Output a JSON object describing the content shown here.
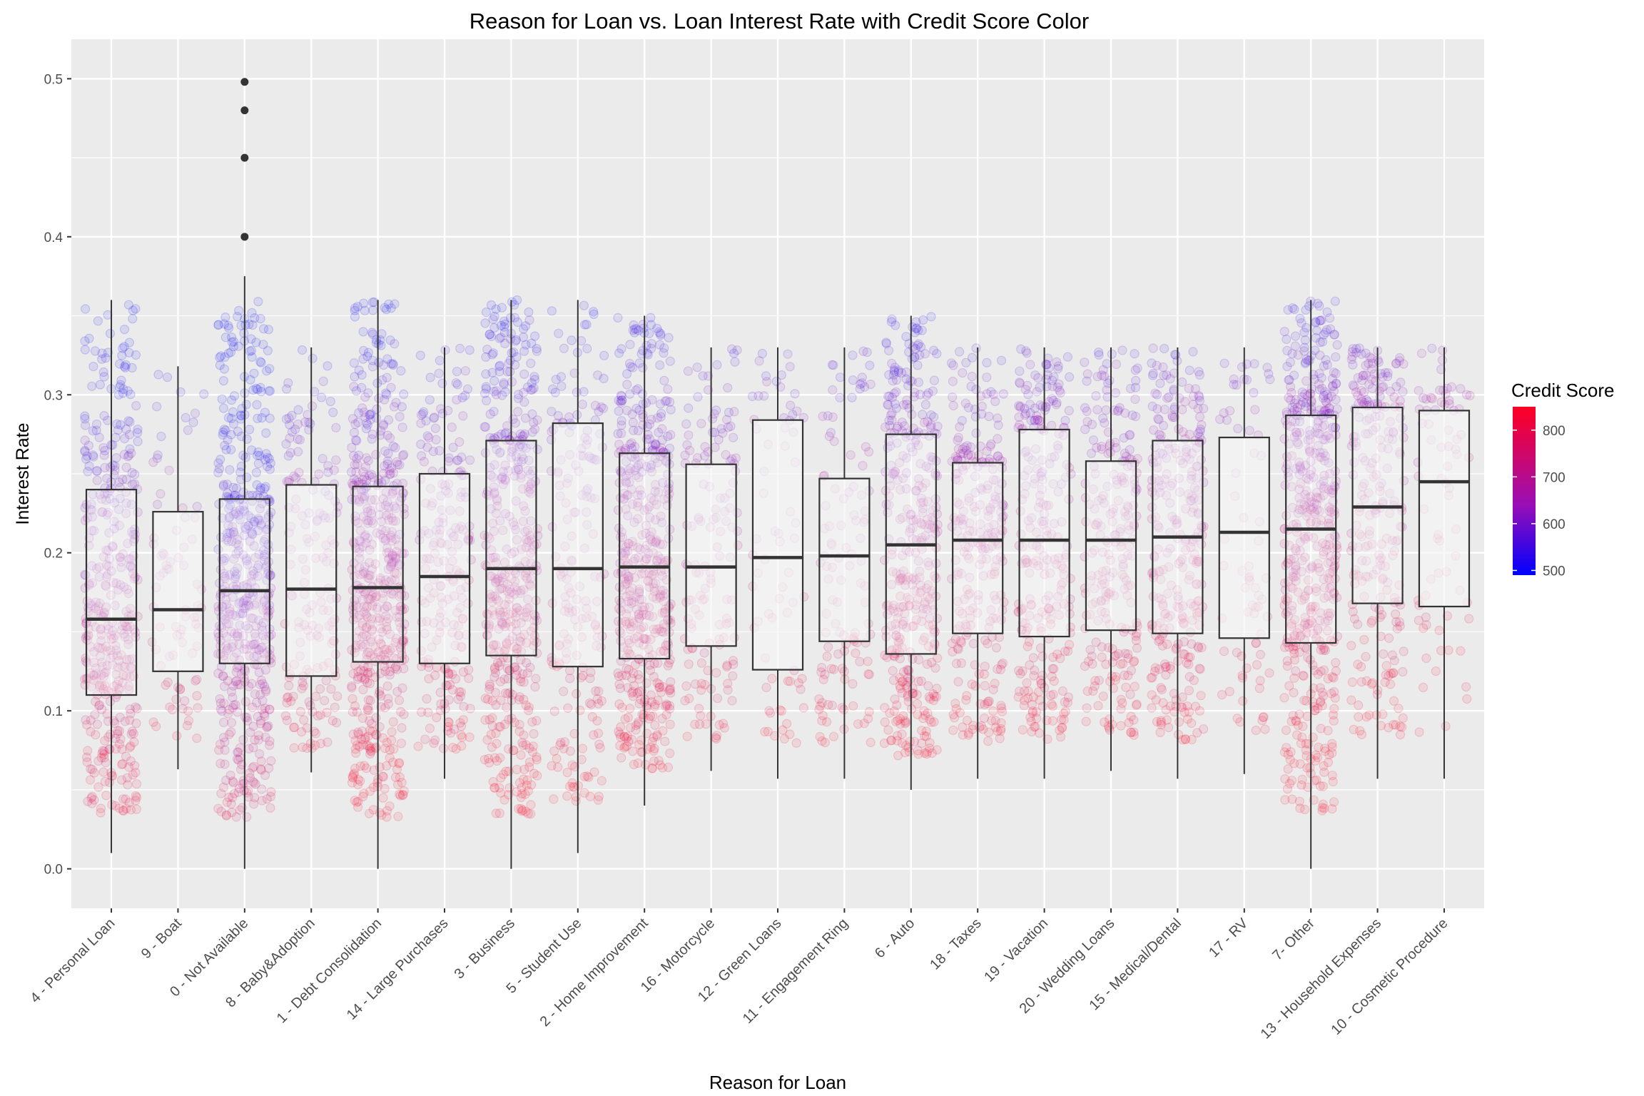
{
  "chart_data": {
    "type": "box",
    "title": "Reason for Loan vs. Loan Interest Rate with Credit Score Color",
    "xlabel": "Reason for Loan",
    "ylabel": "Interest Rate",
    "ylim": [
      -0.025,
      0.525
    ],
    "yticks": [
      0.0,
      0.1,
      0.2,
      0.3,
      0.4,
      0.5
    ],
    "ytick_labels": [
      "0.0",
      "0.1",
      "0.2",
      "0.3",
      "0.4",
      "0.5"
    ],
    "grid": true,
    "legend": {
      "title": "Credit Score",
      "position": "right",
      "range": [
        490,
        850
      ],
      "ticks": [
        500,
        600,
        700,
        800
      ],
      "tick_labels": [
        "500",
        "600",
        "700",
        "800"
      ],
      "color_low": "#0000ff",
      "color_mid": "#9a0fb5",
      "color_high": "#ff0022"
    },
    "colors": {
      "panel": "#ebebeb",
      "grid": "#ffffff",
      "box_fill": "#f5f5f5",
      "box_stroke": "#333333",
      "median": "#333333",
      "outlier": "#333333"
    },
    "categories": [
      "4 - Personal Loan",
      "9 - Boat",
      "0 - Not Available",
      "8 - Baby&Adoption",
      "1 - Debt Consolidation",
      "14 - Large Purchases",
      "3 - Business",
      "5 - Student Use",
      "2 - Home Improvement",
      "16 - Motorcycle",
      "12 - Green Loans",
      "11 - Engagement Ring",
      "6 - Auto",
      "18 - Taxes",
      "19 - Vacation",
      "20 - Wedding Loans",
      "15 - Medical/Dental",
      "17 - RV",
      "7- Other",
      "13 - Household Expenses",
      "10 - Cosmetic Procedure"
    ],
    "boxes": [
      {
        "whisker_low": 0.01,
        "q1": 0.11,
        "median": 0.158,
        "q3": 0.24,
        "whisker_high": 0.36,
        "outliers": [],
        "density": 0.75,
        "mean_credit_score": 690
      },
      {
        "whisker_low": 0.063,
        "q1": 0.125,
        "median": 0.164,
        "q3": 0.226,
        "whisker_high": 0.318,
        "outliers": [],
        "density": 0.08,
        "mean_credit_score": 720
      },
      {
        "whisker_low": 0.0,
        "q1": 0.13,
        "median": 0.176,
        "q3": 0.234,
        "whisker_high": 0.375,
        "outliers": [
          0.4,
          0.45,
          0.48,
          0.498
        ],
        "density": 0.95,
        "mean_credit_score": 610
      },
      {
        "whisker_low": 0.061,
        "q1": 0.122,
        "median": 0.177,
        "q3": 0.243,
        "whisker_high": 0.33,
        "outliers": [],
        "density": 0.25,
        "mean_credit_score": 705
      },
      {
        "whisker_low": 0.0,
        "q1": 0.131,
        "median": 0.178,
        "q3": 0.242,
        "whisker_high": 0.36,
        "outliers": [],
        "density": 1.0,
        "mean_credit_score": 705
      },
      {
        "whisker_low": 0.057,
        "q1": 0.13,
        "median": 0.185,
        "q3": 0.25,
        "whisker_high": 0.33,
        "outliers": [],
        "density": 0.35,
        "mean_credit_score": 705
      },
      {
        "whisker_low": 0.0,
        "q1": 0.135,
        "median": 0.19,
        "q3": 0.271,
        "whisker_high": 0.36,
        "outliers": [],
        "density": 0.85,
        "mean_credit_score": 700
      },
      {
        "whisker_low": 0.01,
        "q1": 0.128,
        "median": 0.19,
        "q3": 0.282,
        "whisker_high": 0.36,
        "outliers": [],
        "density": 0.3,
        "mean_credit_score": 700
      },
      {
        "whisker_low": 0.04,
        "q1": 0.133,
        "median": 0.191,
        "q3": 0.263,
        "whisker_high": 0.35,
        "outliers": [],
        "density": 0.9,
        "mean_credit_score": 700
      },
      {
        "whisker_low": 0.062,
        "q1": 0.141,
        "median": 0.191,
        "q3": 0.256,
        "whisker_high": 0.33,
        "outliers": [],
        "density": 0.2,
        "mean_credit_score": 710
      },
      {
        "whisker_low": 0.057,
        "q1": 0.126,
        "median": 0.197,
        "q3": 0.284,
        "whisker_high": 0.33,
        "outliers": [],
        "density": 0.06,
        "mean_credit_score": 720
      },
      {
        "whisker_low": 0.057,
        "q1": 0.144,
        "median": 0.198,
        "q3": 0.247,
        "whisker_high": 0.33,
        "outliers": [],
        "density": 0.15,
        "mean_credit_score": 710
      },
      {
        "whisker_low": 0.05,
        "q1": 0.136,
        "median": 0.205,
        "q3": 0.275,
        "whisker_high": 0.35,
        "outliers": [],
        "density": 0.7,
        "mean_credit_score": 700
      },
      {
        "whisker_low": 0.057,
        "q1": 0.149,
        "median": 0.208,
        "q3": 0.257,
        "whisker_high": 0.33,
        "outliers": [],
        "density": 0.45,
        "mean_credit_score": 705
      },
      {
        "whisker_low": 0.057,
        "q1": 0.147,
        "median": 0.208,
        "q3": 0.278,
        "whisker_high": 0.33,
        "outliers": [],
        "density": 0.45,
        "mean_credit_score": 705
      },
      {
        "whisker_low": 0.062,
        "q1": 0.151,
        "median": 0.208,
        "q3": 0.258,
        "whisker_high": 0.33,
        "outliers": [],
        "density": 0.4,
        "mean_credit_score": 705
      },
      {
        "whisker_low": 0.057,
        "q1": 0.149,
        "median": 0.21,
        "q3": 0.271,
        "whisker_high": 0.33,
        "outliers": [],
        "density": 0.5,
        "mean_credit_score": 705
      },
      {
        "whisker_low": 0.06,
        "q1": 0.146,
        "median": 0.213,
        "q3": 0.273,
        "whisker_high": 0.33,
        "outliers": [],
        "density": 0.06,
        "mean_credit_score": 715
      },
      {
        "whisker_low": 0.0,
        "q1": 0.143,
        "median": 0.215,
        "q3": 0.287,
        "whisker_high": 0.36,
        "outliers": [],
        "density": 0.95,
        "mean_credit_score": 705
      },
      {
        "whisker_low": 0.057,
        "q1": 0.168,
        "median": 0.229,
        "q3": 0.292,
        "whisker_high": 0.33,
        "outliers": [],
        "density": 0.4,
        "mean_credit_score": 705
      },
      {
        "whisker_low": 0.057,
        "q1": 0.166,
        "median": 0.245,
        "q3": 0.29,
        "whisker_high": 0.33,
        "outliers": [],
        "density": 0.07,
        "mean_credit_score": 715
      }
    ]
  }
}
